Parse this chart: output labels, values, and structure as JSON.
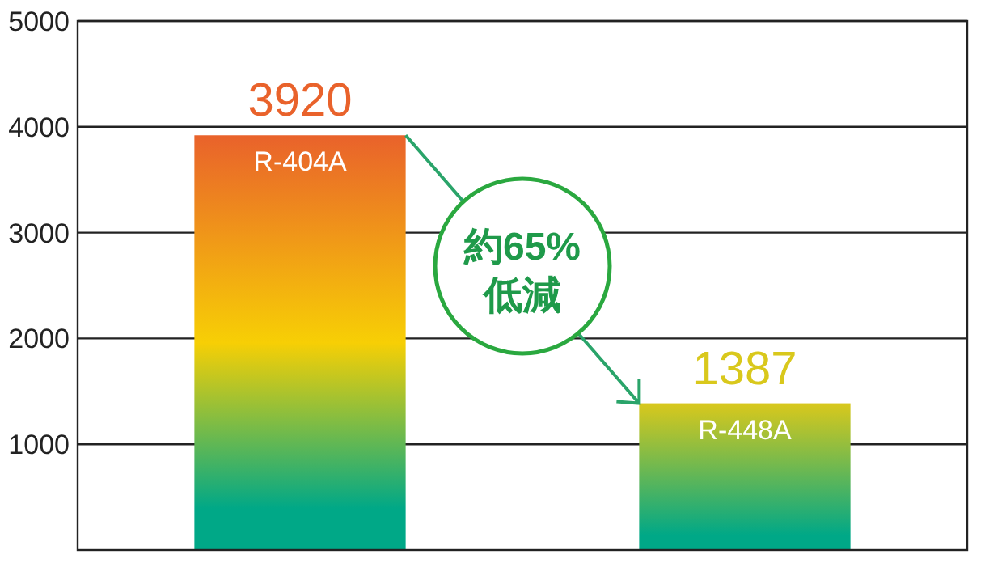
{
  "chart_data": {
    "type": "bar",
    "categories": [
      "R-404A",
      "R-448A"
    ],
    "values": [
      3920,
      1387
    ],
    "colors": [
      "#e9622b",
      "#d9c81c"
    ],
    "ylim": [
      0,
      5000
    ],
    "yticks": [
      1000,
      2000,
      3000,
      4000,
      5000
    ],
    "grid": "y",
    "data_labels": true,
    "annotations": [
      "約65%低減"
    ]
  }
}
